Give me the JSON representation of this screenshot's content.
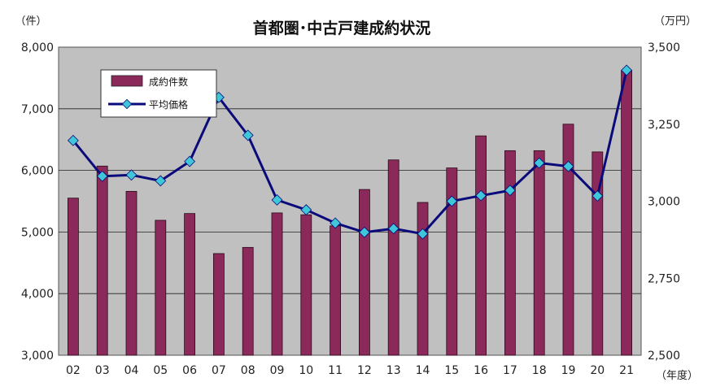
{
  "chart_data": {
    "type": "bar",
    "title": "首都圏･中古戸建成約状況",
    "y_left_unit": "（件）",
    "y_right_unit": "（万円）",
    "x_unit": "（年度）",
    "categories": [
      "02",
      "03",
      "04",
      "05",
      "06",
      "07",
      "08",
      "09",
      "10",
      "11",
      "12",
      "13",
      "14",
      "15",
      "16",
      "17",
      "18",
      "19",
      "20",
      "21"
    ],
    "y_left": {
      "min": 3000,
      "max": 8000,
      "ticks": [
        "3,000",
        "4,000",
        "5,000",
        "6,000",
        "7,000",
        "8,000"
      ]
    },
    "y_right": {
      "min": 2500,
      "max": 3500,
      "ticks": [
        "2,500",
        "2,750",
        "3,000",
        "3,250",
        "3,500"
      ]
    },
    "series": [
      {
        "name": "成約件数",
        "type": "bar",
        "axis": "left",
        "color": "#8b2a5a",
        "values": [
          5550,
          6070,
          5660,
          5190,
          5300,
          4650,
          4750,
          5310,
          5280,
          5100,
          5690,
          6170,
          5480,
          6040,
          6560,
          6320,
          6320,
          6750,
          6300,
          7620
        ]
      },
      {
        "name": "平均価格",
        "type": "line",
        "axis": "right",
        "color": "#0a0a7a",
        "marker_color": "#3fc6d9",
        "values": [
          3197,
          3081,
          3085,
          3066,
          3129,
          3337,
          3214,
          3004,
          2972,
          2929,
          2899,
          2911,
          2894,
          3000,
          3018,
          3035,
          3124,
          3113,
          3017,
          3425
        ]
      }
    ],
    "grid": true,
    "legend_position": "top-left",
    "plot_background": "#c0c0c0"
  }
}
